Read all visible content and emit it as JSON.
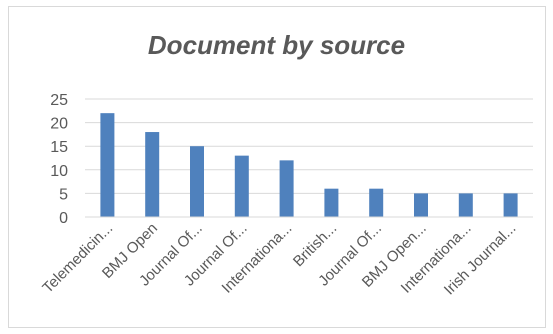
{
  "chart_data": {
    "type": "bar",
    "title": "Document  by source",
    "categories": [
      "Telemedicin...",
      "BMJ Open",
      "Journal Of...",
      "Journal Of...",
      "Internationa...",
      "British...",
      "Journal Of...",
      "BMJ Open...",
      "Internationa...",
      "Irish Journal..."
    ],
    "values": [
      22,
      18,
      15,
      13,
      12,
      6,
      6,
      5,
      5,
      5
    ],
    "ylim": [
      0,
      25
    ],
    "yticks": [
      "0",
      "5",
      "10",
      "15",
      "20",
      "25"
    ],
    "grid": true,
    "legend": "none",
    "colors": {
      "bar": "#4f81bd",
      "grid": "#d9d9d9",
      "text": "#595959"
    }
  }
}
